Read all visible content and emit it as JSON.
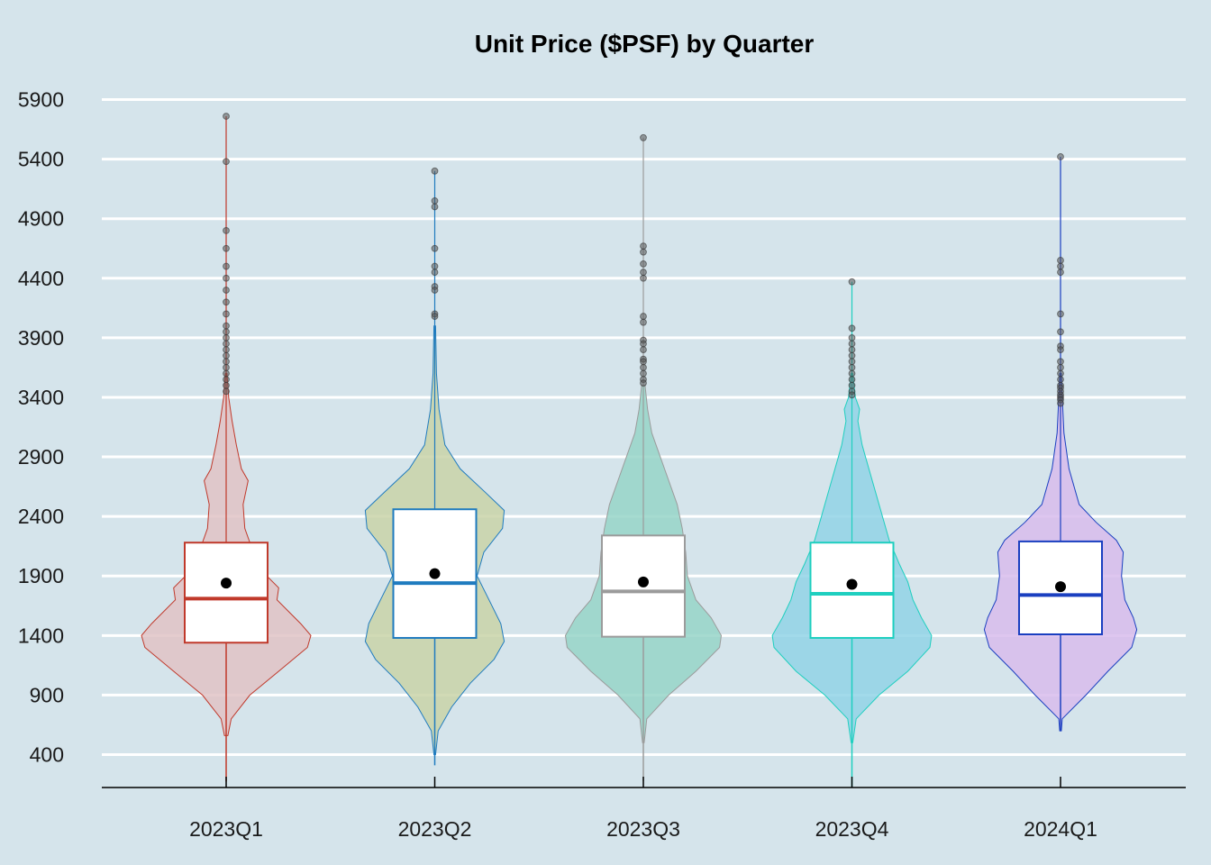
{
  "chart_data": {
    "type": "violin",
    "title": "Unit Price ($PSF) by Quarter",
    "xlabel": "",
    "ylabel": "",
    "y_ticks": [
      400,
      900,
      1400,
      1900,
      2400,
      2900,
      3400,
      3900,
      4400,
      4900,
      5400,
      5900
    ],
    "ylim": [
      130,
      6000
    ],
    "grid": "horizontal",
    "legend": "none",
    "background": "#d5e4eb",
    "categories": [
      "2023Q1",
      "2023Q2",
      "2023Q3",
      "2023Q4",
      "2024Q1"
    ],
    "series": [
      {
        "category": "2023Q1",
        "line_color": "#c0392b",
        "fill_color": "#e0c3c6",
        "min": 175,
        "q1": 1340,
        "median": 1710,
        "mean": 1840,
        "q3": 2180,
        "whisker_high": 3430,
        "max": 5760,
        "outliers": [
          5760,
          5380,
          4800,
          4650,
          4500,
          4400,
          4300,
          4200,
          4100,
          4000,
          3950,
          3900,
          3850,
          3800,
          3750,
          3700,
          3650,
          3600,
          3550,
          3500,
          3450
        ],
        "density": [
          [
            560,
            0.02
          ],
          [
            700,
            0.06
          ],
          [
            900,
            0.28
          ],
          [
            1100,
            0.62
          ],
          [
            1300,
            0.96
          ],
          [
            1400,
            1.0
          ],
          [
            1500,
            0.88
          ],
          [
            1700,
            0.6
          ],
          [
            1800,
            0.62
          ],
          [
            1900,
            0.48
          ],
          [
            2100,
            0.32
          ],
          [
            2300,
            0.22
          ],
          [
            2500,
            0.2
          ],
          [
            2700,
            0.26
          ],
          [
            2800,
            0.18
          ],
          [
            3000,
            0.12
          ],
          [
            3200,
            0.07
          ],
          [
            3400,
            0.03
          ],
          [
            3600,
            0.01
          ]
        ]
      },
      {
        "category": "2023Q2",
        "line_color": "#1f7bbf",
        "fill_color": "#c9d3a8",
        "min": 310,
        "q1": 1380,
        "median": 1840,
        "mean": 1920,
        "q3": 2460,
        "whisker_high": 4000,
        "max": 5300,
        "outliers": [
          5300,
          5050,
          5000,
          4650,
          4500,
          4450,
          4330,
          4300,
          4100,
          4080
        ],
        "density": [
          [
            400,
            0.01
          ],
          [
            600,
            0.04
          ],
          [
            800,
            0.2
          ],
          [
            1000,
            0.42
          ],
          [
            1200,
            0.7
          ],
          [
            1350,
            0.82
          ],
          [
            1500,
            0.78
          ],
          [
            1700,
            0.64
          ],
          [
            1900,
            0.5
          ],
          [
            2100,
            0.58
          ],
          [
            2300,
            0.8
          ],
          [
            2450,
            0.82
          ],
          [
            2600,
            0.6
          ],
          [
            2800,
            0.3
          ],
          [
            3000,
            0.12
          ],
          [
            3300,
            0.05
          ],
          [
            3600,
            0.02
          ],
          [
            4000,
            0.01
          ]
        ]
      },
      {
        "category": "2023Q3",
        "line_color": "#9b9b9b",
        "fill_color": "#97d5c8",
        "min": 180,
        "q1": 1390,
        "median": 1770,
        "mean": 1850,
        "q3": 2240,
        "whisker_high": 3460,
        "max": 5580,
        "outliers": [
          5580,
          4670,
          4620,
          4520,
          4450,
          4400,
          4080,
          4030,
          3880,
          3850,
          3800,
          3720,
          3700,
          3650,
          3600,
          3550,
          3520
        ],
        "density": [
          [
            500,
            0.01
          ],
          [
            700,
            0.04
          ],
          [
            900,
            0.3
          ],
          [
            1100,
            0.62
          ],
          [
            1300,
            0.9
          ],
          [
            1400,
            0.92
          ],
          [
            1550,
            0.8
          ],
          [
            1700,
            0.62
          ],
          [
            1900,
            0.52
          ],
          [
            2100,
            0.5
          ],
          [
            2300,
            0.46
          ],
          [
            2500,
            0.4
          ],
          [
            2700,
            0.3
          ],
          [
            2900,
            0.2
          ],
          [
            3100,
            0.1
          ],
          [
            3300,
            0.05
          ],
          [
            3500,
            0.02
          ]
        ]
      },
      {
        "category": "2023Q4",
        "line_color": "#1ecfbf",
        "fill_color": "#92d3e6",
        "min": 130,
        "q1": 1380,
        "median": 1750,
        "mean": 1830,
        "q3": 2180,
        "whisker_high": 3420,
        "max": 4370,
        "outliers": [
          4370,
          3980,
          3900,
          3850,
          3800,
          3750,
          3700,
          3650,
          3600,
          3550,
          3500,
          3450,
          3420
        ],
        "density": [
          [
            500,
            0.01
          ],
          [
            700,
            0.05
          ],
          [
            900,
            0.32
          ],
          [
            1100,
            0.66
          ],
          [
            1300,
            0.92
          ],
          [
            1400,
            0.94
          ],
          [
            1550,
            0.82
          ],
          [
            1700,
            0.72
          ],
          [
            1850,
            0.66
          ],
          [
            2000,
            0.56
          ],
          [
            2200,
            0.44
          ],
          [
            2500,
            0.32
          ],
          [
            2800,
            0.2
          ],
          [
            3000,
            0.12
          ],
          [
            3200,
            0.07
          ],
          [
            3300,
            0.09
          ],
          [
            3400,
            0.04
          ],
          [
            3600,
            0.01
          ]
        ]
      },
      {
        "category": "2024Q1",
        "line_color": "#1a3fc0",
        "fill_color": "#d8bcec",
        "min": 600,
        "q1": 1410,
        "median": 1740,
        "mean": 1810,
        "q3": 2190,
        "whisker_high": 3350,
        "max": 5420,
        "outliers": [
          5420,
          4550,
          4500,
          4450,
          4100,
          3950,
          3830,
          3800,
          3700,
          3650,
          3600,
          3550,
          3500,
          3480,
          3450,
          3420,
          3400,
          3380,
          3350
        ],
        "density": [
          [
            600,
            0.01
          ],
          [
            700,
            0.02
          ],
          [
            900,
            0.3
          ],
          [
            1100,
            0.56
          ],
          [
            1300,
            0.84
          ],
          [
            1450,
            0.9
          ],
          [
            1550,
            0.86
          ],
          [
            1700,
            0.76
          ],
          [
            1900,
            0.72
          ],
          [
            2100,
            0.74
          ],
          [
            2200,
            0.66
          ],
          [
            2350,
            0.42
          ],
          [
            2500,
            0.22
          ],
          [
            2800,
            0.1
          ],
          [
            3100,
            0.04
          ],
          [
            3400,
            0.02
          ],
          [
            3600,
            0.01
          ]
        ]
      }
    ]
  }
}
